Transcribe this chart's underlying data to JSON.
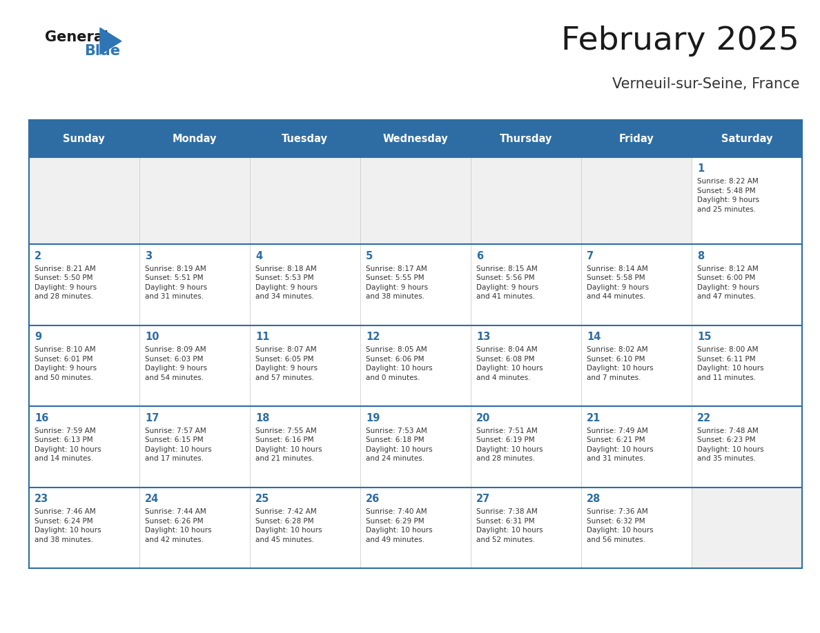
{
  "title": "February 2025",
  "subtitle": "Verneuil-sur-Seine, France",
  "days_of_week": [
    "Sunday",
    "Monday",
    "Tuesday",
    "Wednesday",
    "Thursday",
    "Friday",
    "Saturday"
  ],
  "header_bg": "#2e6da4",
  "header_text": "#ffffff",
  "cell_bg_white": "#ffffff",
  "cell_bg_gray": "#f0f0f0",
  "day_num_color": "#2e6da4",
  "info_color": "#333333",
  "separator_color": "#2e6da4",
  "calendar_data": [
    [
      null,
      null,
      null,
      null,
      null,
      null,
      {
        "day": 1,
        "sunrise": "8:22 AM",
        "sunset": "5:48 PM",
        "daylight": "9 hours\nand 25 minutes."
      }
    ],
    [
      {
        "day": 2,
        "sunrise": "8:21 AM",
        "sunset": "5:50 PM",
        "daylight": "9 hours\nand 28 minutes."
      },
      {
        "day": 3,
        "sunrise": "8:19 AM",
        "sunset": "5:51 PM",
        "daylight": "9 hours\nand 31 minutes."
      },
      {
        "day": 4,
        "sunrise": "8:18 AM",
        "sunset": "5:53 PM",
        "daylight": "9 hours\nand 34 minutes."
      },
      {
        "day": 5,
        "sunrise": "8:17 AM",
        "sunset": "5:55 PM",
        "daylight": "9 hours\nand 38 minutes."
      },
      {
        "day": 6,
        "sunrise": "8:15 AM",
        "sunset": "5:56 PM",
        "daylight": "9 hours\nand 41 minutes."
      },
      {
        "day": 7,
        "sunrise": "8:14 AM",
        "sunset": "5:58 PM",
        "daylight": "9 hours\nand 44 minutes."
      },
      {
        "day": 8,
        "sunrise": "8:12 AM",
        "sunset": "6:00 PM",
        "daylight": "9 hours\nand 47 minutes."
      }
    ],
    [
      {
        "day": 9,
        "sunrise": "8:10 AM",
        "sunset": "6:01 PM",
        "daylight": "9 hours\nand 50 minutes."
      },
      {
        "day": 10,
        "sunrise": "8:09 AM",
        "sunset": "6:03 PM",
        "daylight": "9 hours\nand 54 minutes."
      },
      {
        "day": 11,
        "sunrise": "8:07 AM",
        "sunset": "6:05 PM",
        "daylight": "9 hours\nand 57 minutes."
      },
      {
        "day": 12,
        "sunrise": "8:05 AM",
        "sunset": "6:06 PM",
        "daylight": "10 hours\nand 0 minutes."
      },
      {
        "day": 13,
        "sunrise": "8:04 AM",
        "sunset": "6:08 PM",
        "daylight": "10 hours\nand 4 minutes."
      },
      {
        "day": 14,
        "sunrise": "8:02 AM",
        "sunset": "6:10 PM",
        "daylight": "10 hours\nand 7 minutes."
      },
      {
        "day": 15,
        "sunrise": "8:00 AM",
        "sunset": "6:11 PM",
        "daylight": "10 hours\nand 11 minutes."
      }
    ],
    [
      {
        "day": 16,
        "sunrise": "7:59 AM",
        "sunset": "6:13 PM",
        "daylight": "10 hours\nand 14 minutes."
      },
      {
        "day": 17,
        "sunrise": "7:57 AM",
        "sunset": "6:15 PM",
        "daylight": "10 hours\nand 17 minutes."
      },
      {
        "day": 18,
        "sunrise": "7:55 AM",
        "sunset": "6:16 PM",
        "daylight": "10 hours\nand 21 minutes."
      },
      {
        "day": 19,
        "sunrise": "7:53 AM",
        "sunset": "6:18 PM",
        "daylight": "10 hours\nand 24 minutes."
      },
      {
        "day": 20,
        "sunrise": "7:51 AM",
        "sunset": "6:19 PM",
        "daylight": "10 hours\nand 28 minutes."
      },
      {
        "day": 21,
        "sunrise": "7:49 AM",
        "sunset": "6:21 PM",
        "daylight": "10 hours\nand 31 minutes."
      },
      {
        "day": 22,
        "sunrise": "7:48 AM",
        "sunset": "6:23 PM",
        "daylight": "10 hours\nand 35 minutes."
      }
    ],
    [
      {
        "day": 23,
        "sunrise": "7:46 AM",
        "sunset": "6:24 PM",
        "daylight": "10 hours\nand 38 minutes."
      },
      {
        "day": 24,
        "sunrise": "7:44 AM",
        "sunset": "6:26 PM",
        "daylight": "10 hours\nand 42 minutes."
      },
      {
        "day": 25,
        "sunrise": "7:42 AM",
        "sunset": "6:28 PM",
        "daylight": "10 hours\nand 45 minutes."
      },
      {
        "day": 26,
        "sunrise": "7:40 AM",
        "sunset": "6:29 PM",
        "daylight": "10 hours\nand 49 minutes."
      },
      {
        "day": 27,
        "sunrise": "7:38 AM",
        "sunset": "6:31 PM",
        "daylight": "10 hours\nand 52 minutes."
      },
      {
        "day": 28,
        "sunrise": "7:36 AM",
        "sunset": "6:32 PM",
        "daylight": "10 hours\nand 56 minutes."
      },
      null
    ]
  ]
}
